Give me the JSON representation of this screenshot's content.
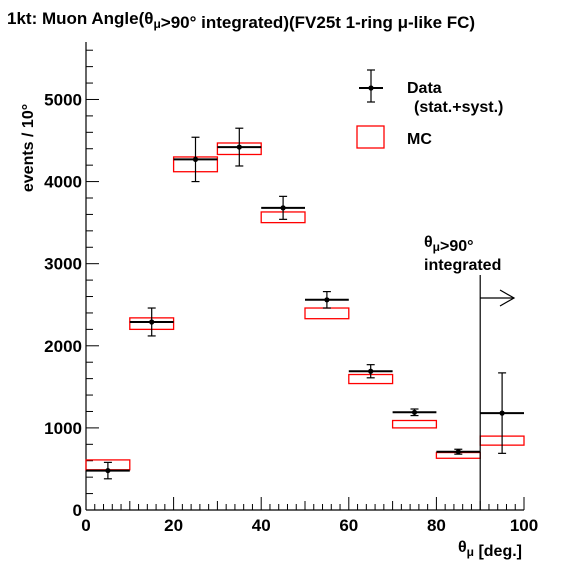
{
  "chart_data": {
    "type": "scatter",
    "title": "1kt: Muon Angle(θμ>90° integrated)(FV25t 1-ring μ-like FC)",
    "xlabel": "θμ [deg.]",
    "ylabel": "events / 10°",
    "xlim": [
      0,
      100
    ],
    "ylim": [
      0,
      5700
    ],
    "x_ticks": [
      0,
      20,
      40,
      60,
      80,
      100
    ],
    "y_ticks": [
      0,
      1000,
      2000,
      3000,
      4000,
      5000
    ],
    "grid": false,
    "legend_position": "top-right",
    "series": [
      {
        "name": "Data",
        "name_line2": "(stat.+syst.)",
        "color": "#000000",
        "points": [
          {
            "x": 5,
            "xerr": 5,
            "y": 480,
            "yerr": 100
          },
          {
            "x": 15,
            "xerr": 5,
            "y": 2290,
            "yerr": 170
          },
          {
            "x": 25,
            "xerr": 5,
            "y": 4270,
            "yerr": 270
          },
          {
            "x": 35,
            "xerr": 5,
            "y": 4420,
            "yerr": 230
          },
          {
            "x": 45,
            "xerr": 5,
            "y": 3680,
            "yerr": 140
          },
          {
            "x": 55,
            "xerr": 5,
            "y": 2560,
            "yerr": 100
          },
          {
            "x": 65,
            "xerr": 5,
            "y": 1690,
            "yerr": 80
          },
          {
            "x": 75,
            "xerr": 5,
            "y": 1190,
            "yerr": 40
          },
          {
            "x": 85,
            "xerr": 5,
            "y": 710,
            "yerr": 30
          },
          {
            "x": 95,
            "xerr": 5,
            "y": 1180,
            "yerr": 490
          }
        ]
      },
      {
        "name": "MC",
        "color": "#ff0000",
        "boxes": [
          {
            "xlo": 0,
            "xhi": 10,
            "ylo": 490,
            "yhi": 610
          },
          {
            "xlo": 10,
            "xhi": 20,
            "ylo": 2200,
            "yhi": 2340
          },
          {
            "xlo": 20,
            "xhi": 30,
            "ylo": 4120,
            "yhi": 4300
          },
          {
            "xlo": 30,
            "xhi": 40,
            "ylo": 4330,
            "yhi": 4470
          },
          {
            "xlo": 40,
            "xhi": 50,
            "ylo": 3500,
            "yhi": 3630
          },
          {
            "xlo": 50,
            "xhi": 60,
            "ylo": 2330,
            "yhi": 2460
          },
          {
            "xlo": 60,
            "xhi": 70,
            "ylo": 1540,
            "yhi": 1650
          },
          {
            "xlo": 70,
            "xhi": 80,
            "ylo": 1000,
            "yhi": 1090
          },
          {
            "xlo": 80,
            "xhi": 90,
            "ylo": 630,
            "yhi": 700
          },
          {
            "xlo": 90,
            "xhi": 100,
            "ylo": 790,
            "yhi": 900
          }
        ]
      }
    ],
    "annotation": {
      "line1": "θμ>90°",
      "line2": "integrated",
      "divider_x": 90
    }
  }
}
